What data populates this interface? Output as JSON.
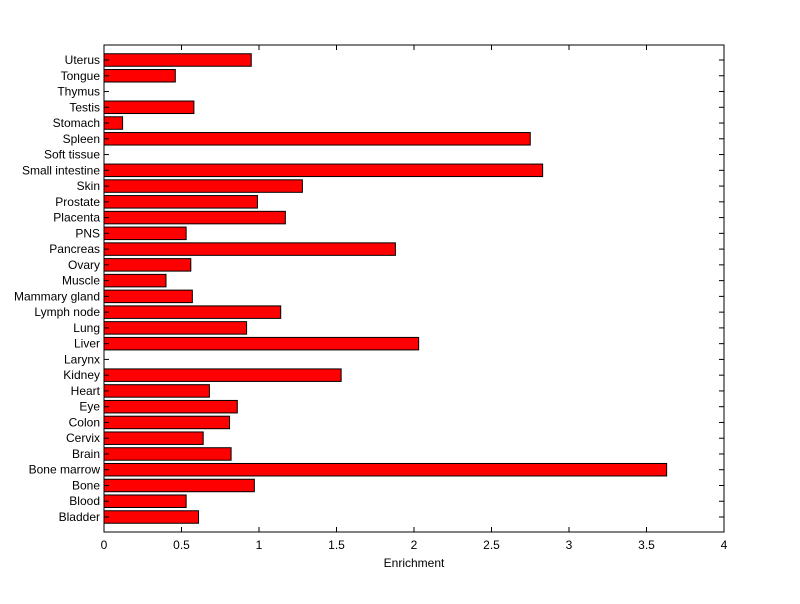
{
  "chart_data": {
    "type": "bar",
    "orientation": "horizontal",
    "title": "",
    "xlabel": "Enrichment",
    "ylabel": "",
    "xlim": [
      0,
      4
    ],
    "xticks": [
      0,
      0.5,
      1,
      1.5,
      2,
      2.5,
      3,
      3.5,
      4
    ],
    "xtick_labels": [
      "0",
      "0.5",
      "1",
      "1.5",
      "2",
      "2.5",
      "3",
      "3.5",
      "4"
    ],
    "grid": false,
    "legend": "none",
    "bar_color": "#ff0000",
    "bar_edge_color": "#000000",
    "categories": [
      "Bladder",
      "Blood",
      "Bone",
      "Bone marrow",
      "Brain",
      "Cervix",
      "Colon",
      "Eye",
      "Heart",
      "Kidney",
      "Larynx",
      "Liver",
      "Lung",
      "Lymph node",
      "Mammary gland",
      "Muscle",
      "Ovary",
      "Pancreas",
      "PNS",
      "Placenta",
      "Prostate",
      "Skin",
      "Small intestine",
      "Soft tissue",
      "Spleen",
      "Stomach",
      "Testis",
      "Thymus",
      "Tongue",
      "Uterus"
    ],
    "values": [
      0.61,
      0.53,
      0.97,
      3.63,
      0.82,
      0.64,
      0.81,
      0.86,
      0.68,
      1.53,
      0,
      2.03,
      0.92,
      1.14,
      0.57,
      0.4,
      0.56,
      1.88,
      0.53,
      1.17,
      0.99,
      1.28,
      2.83,
      0,
      2.75,
      0.12,
      0.58,
      0,
      0.46,
      0.95
    ]
  }
}
